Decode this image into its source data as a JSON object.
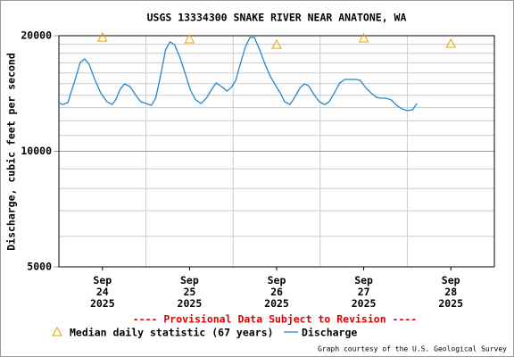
{
  "chart_data": {
    "type": "line",
    "title": "USGS 13334300 SNAKE RIVER NEAR ANATONE, WA",
    "y_label": "Discharge, cubic feet per second",
    "notice": "---- Provisional Data Subject to Revision ----",
    "credit": "Graph courtesy of the U.S. Geological Survey",
    "y_log": true,
    "grid": true,
    "xlim": [
      24,
      29
    ],
    "xticks": [
      {
        "value": 24.5,
        "label": "Sep\n24\n2025"
      },
      {
        "value": 25.5,
        "label": "Sep\n25\n2025"
      },
      {
        "value": 26.5,
        "label": "Sep\n26\n2025"
      },
      {
        "value": 27.5,
        "label": "Sep\n27\n2025"
      },
      {
        "value": 28.5,
        "label": "Sep\n28\n2025"
      }
    ],
    "ylim": [
      5000,
      20000
    ],
    "yticks": [
      5000,
      10000,
      20000
    ],
    "y_minor_ticks": [
      6000,
      7000,
      8000,
      9000,
      11000,
      12000,
      13000,
      14000,
      15000,
      16000,
      17000,
      18000,
      19000
    ],
    "series": [
      {
        "name": "Median daily statistic (67 years)",
        "color": "#e8a000",
        "marker": "triangle",
        "x": [
          24.5,
          25.5,
          26.5,
          27.5,
          28.5
        ],
        "values": [
          19780,
          19580,
          18960,
          19680,
          19060
        ]
      },
      {
        "name": "Discharge",
        "color": "#2a86c8",
        "marker": "line",
        "x": [
          24,
          24.041,
          24.102,
          24.184,
          24.245,
          24.296,
          24.347,
          24.408,
          24.48,
          24.551,
          24.612,
          24.653,
          24.704,
          24.755,
          24.816,
          24.878,
          24.939,
          25,
          25.061,
          25.112,
          25.173,
          25.224,
          25.276,
          25.327,
          25.388,
          25.449,
          25.51,
          25.571,
          25.633,
          25.694,
          25.755,
          25.806,
          25.867,
          25.929,
          25.98,
          26.031,
          26.082,
          26.143,
          26.194,
          26.245,
          26.306,
          26.367,
          26.429,
          26.49,
          26.541,
          26.592,
          26.653,
          26.714,
          26.765,
          26.816,
          26.867,
          26.929,
          26.99,
          27.051,
          27.102,
          27.163,
          27.224,
          27.286,
          27.347,
          27.408,
          27.459,
          27.52,
          27.582,
          27.643,
          27.694,
          27.755,
          27.816,
          27.878,
          27.939,
          28,
          28.061,
          28.112
        ],
        "values": [
          13390,
          13240,
          13390,
          15300,
          17030,
          17400,
          16850,
          15470,
          14200,
          13460,
          13240,
          13610,
          14510,
          14980,
          14740,
          14050,
          13460,
          13320,
          13170,
          13750,
          15970,
          18360,
          19270,
          18960,
          17590,
          15970,
          14430,
          13610,
          13320,
          13750,
          14510,
          15060,
          14740,
          14350,
          14660,
          15300,
          16850,
          18760,
          19790,
          19790,
          18360,
          16850,
          15640,
          14820,
          14200,
          13460,
          13240,
          13900,
          14590,
          14980,
          14820,
          14050,
          13460,
          13240,
          13460,
          14200,
          15060,
          15390,
          15390,
          15390,
          15300,
          14660,
          14200,
          13830,
          13750,
          13750,
          13610,
          13170,
          12900,
          12760,
          12830,
          13320
        ]
      }
    ]
  }
}
